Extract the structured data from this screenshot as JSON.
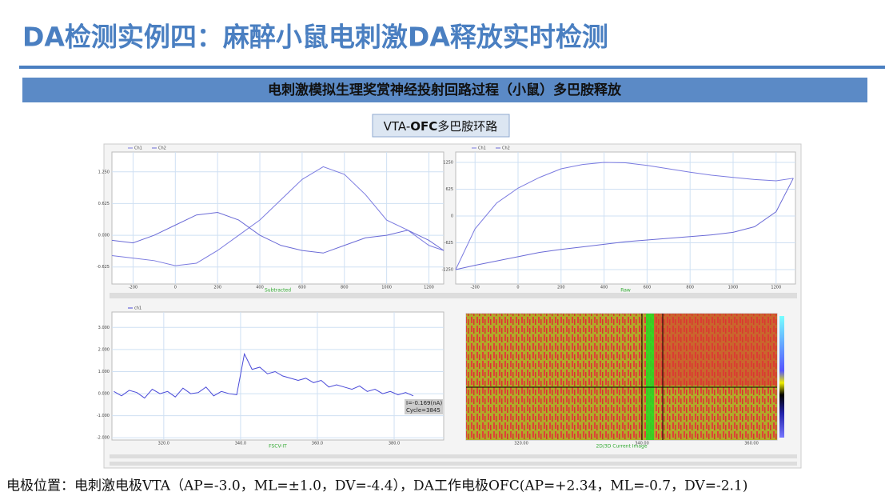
{
  "header": {
    "title": "DA检测实例四：麻醉小鼠电刺激DA释放实时检测"
  },
  "banner": "电刺激模拟生理奖赏神经投射回路过程（小鼠）多巴胺释放",
  "subtitle": [
    "VTA-",
    "OFC",
    "多巴胺环路"
  ],
  "panels": [
    {
      "type": "line",
      "label": "Subtracted",
      "xlim": [
        -300,
        1270
      ],
      "ylim": [
        -0.96,
        1.64
      ],
      "xticks": [
        -200,
        0,
        200,
        400,
        600,
        800,
        1000,
        1200
      ],
      "yticks": [
        {
          "value": 1.25,
          "label": "1.250"
        },
        {
          "value": 0.625,
          "label": "0.625"
        },
        {
          "value": 0,
          "label": "0.000"
        },
        {
          "value": -0.625,
          "label": "-0.625"
        }
      ],
      "x": [
        -300,
        -200,
        -100,
        0,
        100,
        200,
        300,
        400,
        500,
        600,
        700,
        800,
        900,
        1000,
        1100,
        1200,
        1270
      ],
      "series": [
        {
          "name": "Ch1",
          "color": "#7b7be0",
          "values": [
            -0.4,
            -0.45,
            -0.5,
            -0.6,
            -0.55,
            -0.3,
            0.0,
            0.3,
            0.7,
            1.1,
            1.35,
            1.2,
            0.8,
            0.3,
            0.1,
            -0.2,
            -0.3
          ]
        },
        {
          "name": "Ch2",
          "color": "#6a6ad6",
          "values": [
            -0.1,
            -0.15,
            0.0,
            0.2,
            0.4,
            0.45,
            0.3,
            0.0,
            -0.2,
            -0.3,
            -0.35,
            -0.2,
            -0.05,
            0.0,
            0.1,
            -0.1,
            -0.3
          ]
        }
      ]
    },
    {
      "type": "line",
      "label": "Raw",
      "xlim": [
        -290,
        1290
      ],
      "ylim": [
        -1586,
        1492
      ],
      "xticks": [
        -200,
        0,
        200,
        400,
        600,
        800,
        1000,
        1200
      ],
      "yticks": [
        1250,
        625,
        0,
        -625,
        -1250
      ],
      "x": [
        -290,
        -200,
        -100,
        0,
        100,
        200,
        300,
        400,
        500,
        600,
        700,
        800,
        900,
        1000,
        1100,
        1200,
        1280
      ],
      "series": [
        {
          "name": "Ch1",
          "color": "#7b7be0",
          "values": [
            -1250,
            -300,
            300,
            650,
            900,
            1100,
            1200,
            1250,
            1240,
            1180,
            1100,
            1020,
            950,
            900,
            850,
            820,
            880
          ]
        },
        {
          "name": "Ch2",
          "color": "#6a6ad6",
          "values": [
            -1250,
            -1150,
            -1050,
            -950,
            -850,
            -780,
            -720,
            -660,
            -600,
            -560,
            -520,
            -480,
            -440,
            -380,
            -250,
            100,
            880
          ]
        }
      ]
    },
    {
      "type": "line",
      "label": "FSCV-IT",
      "xlim": [
        306.5,
        392.9
      ],
      "ylim": [
        -2.1,
        3.7
      ],
      "xticks": [
        {
          "value": 320,
          "label": "320.0"
        },
        {
          "value": 340,
          "label": "340.0"
        },
        {
          "value": 360,
          "label": "360.0"
        },
        {
          "value": 380,
          "label": "380.0"
        }
      ],
      "yticks": [
        {
          "value": 3,
          "label": "3.000"
        },
        {
          "value": 2,
          "label": "2.000"
        },
        {
          "value": 1,
          "label": "1.000"
        },
        {
          "value": 0,
          "label": "0.000"
        },
        {
          "value": -1,
          "label": "-1.000"
        },
        {
          "value": -2,
          "label": "-2.000"
        }
      ],
      "x": [
        307,
        309,
        311,
        313,
        315,
        317,
        319,
        321,
        323,
        325,
        327,
        329,
        331,
        333,
        335,
        337,
        339,
        341,
        343,
        345,
        347,
        349,
        351,
        353,
        355,
        357,
        359,
        361,
        363,
        365,
        367,
        369,
        371,
        373,
        375,
        377,
        379,
        381,
        383,
        385
      ],
      "series": [
        {
          "name": "ch1",
          "color": "#4a4ad8",
          "values": [
            0.1,
            -0.1,
            0.15,
            0.05,
            -0.2,
            0.2,
            0.0,
            0.1,
            -0.15,
            0.25,
            0.0,
            0.05,
            0.3,
            -0.1,
            0.1,
            0.0,
            -0.05,
            1.8,
            1.1,
            1.2,
            0.9,
            1.0,
            0.8,
            0.7,
            0.6,
            0.7,
            0.5,
            0.6,
            0.3,
            0.4,
            0.3,
            0.2,
            0.35,
            0.1,
            0.2,
            0.0,
            0.1,
            -0.05,
            0.05,
            -0.1
          ]
        }
      ],
      "annotation": [
        "I=-0.169(nA)",
        "Cycle=3845"
      ]
    },
    {
      "type": "heatmap",
      "label": "2D/3D Current Image",
      "xticks": [
        "320.00",
        "340.00",
        "360.00"
      ]
    }
  ],
  "footer": "电极位置：电刺激电极VTA（AP=-3.0，ML=±1.0，DV=-4.4），DA工作电极OFC(AP=+2.34，ML=-0.7，DV=-2.1)"
}
